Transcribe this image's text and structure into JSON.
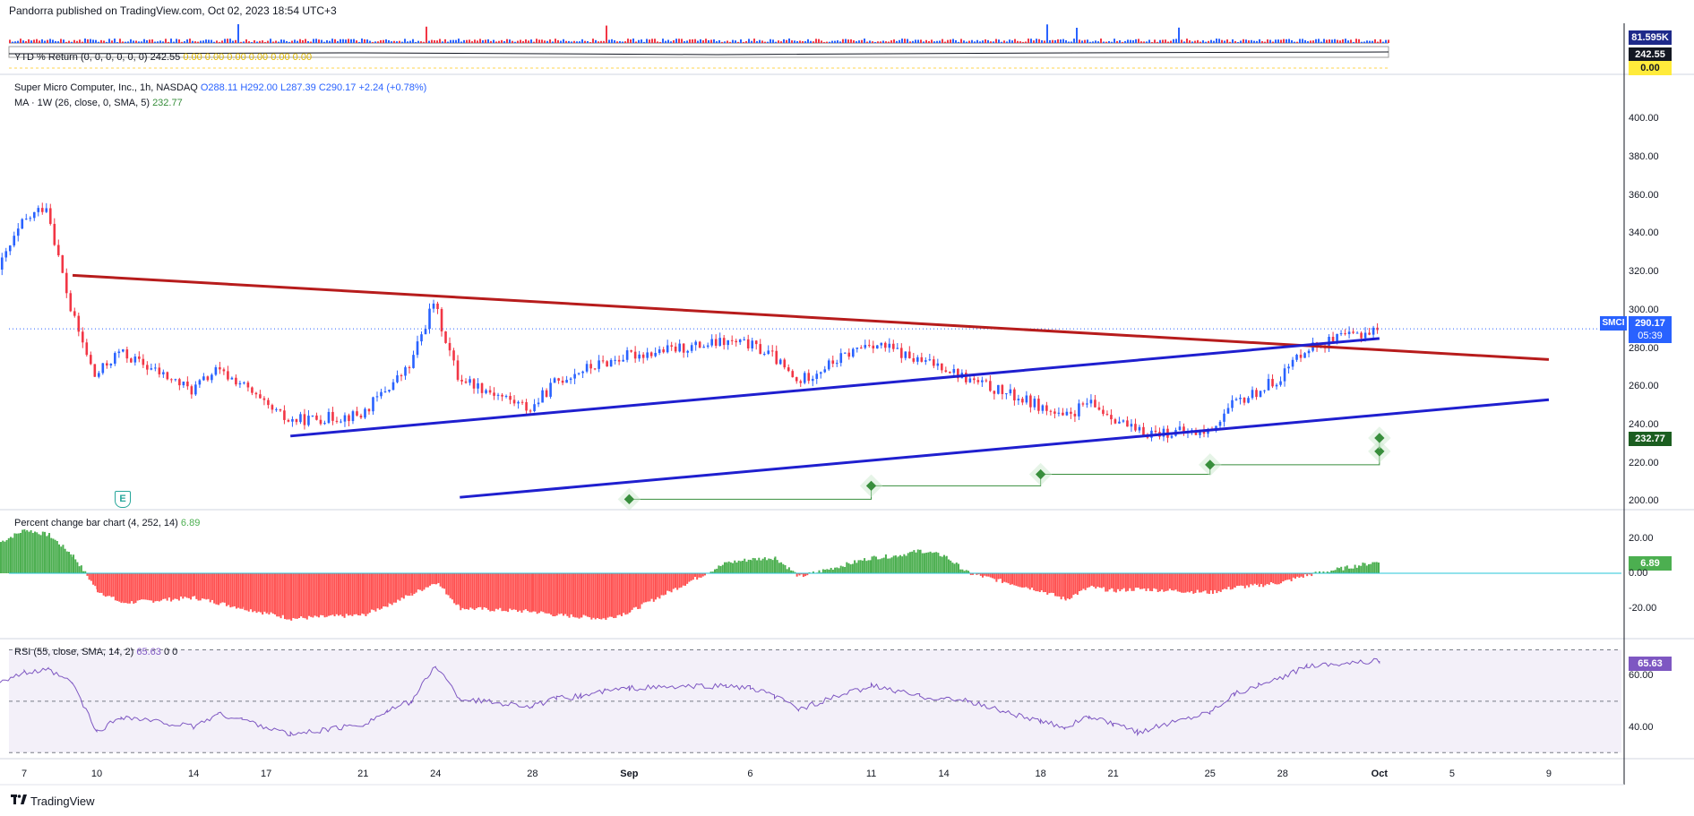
{
  "header": {
    "text": "Pandorra published on TradingView.com, Oct 02, 2023 18:54 UTC+3"
  },
  "footer": {
    "brand": "TradingView"
  },
  "top_panel": {
    "volume_badge": "81.595K",
    "ytd_label": "YTD % Return (0, 0, 0, 0, 0, 0)",
    "ytd_value": "242.55",
    "ytd_zeros": "0.00  0.00  0.00  0.00  0.00  0.00",
    "ytd_badge": "242.55",
    "zero_badge": "0.00"
  },
  "main": {
    "title": "Super Micro Computer, Inc., 1h, NASDAQ",
    "o": "O288.11",
    "h": "H292.00",
    "l": "L287.39",
    "c": "C290.17",
    "chg": "+2.24 (+0.78%)",
    "ma_label": "MA · 1W (26, close, 0, SMA, 5)",
    "ma_value": "232.77",
    "price_badge": "290.17",
    "time_badge": "05:39",
    "symbol_badge": "SMCI",
    "ma_badge": "232.77",
    "earnings_marker": "E"
  },
  "pct": {
    "label": "Percent change bar chart (4, 252, 14)",
    "value": "6.89",
    "badge": "6.89"
  },
  "rsi": {
    "label": "RSI (55, close, SMA, 14, 2)",
    "value": "65.63",
    "extra": "0  0",
    "badge": "65.63"
  },
  "colors": {
    "up": "#2962ff",
    "down": "#f23645",
    "res": "#b71c1c",
    "sup": "#1f1fcf",
    "pct_up": "#4caf50",
    "pct_down": "#ff5252",
    "rsi": "#7e57c2",
    "ma": "#388e3c"
  },
  "chart_data": [
    {
      "type": "line",
      "title": "Super Micro Computer, Inc., 1h, NASDAQ",
      "y_ticks": [
        200,
        220,
        240,
        260,
        280,
        300,
        320,
        340,
        360,
        380,
        400
      ],
      "ylim": [
        196,
        416
      ],
      "x_ticks": [
        "7",
        "10",
        "14",
        "17",
        "21",
        "24",
        "28",
        "Sep",
        "6",
        "11",
        "14",
        "18",
        "21",
        "25",
        "28",
        "Oct",
        "5",
        "9"
      ],
      "series": [
        {
          "x": [
            "Aug 6",
            "Aug 7",
            "Aug 8",
            "Aug 9",
            "Aug 10",
            "Aug 11",
            "Aug 14",
            "Aug 15",
            "Aug 16",
            "Aug 17",
            "Aug 18",
            "Aug 21",
            "Aug 22",
            "Aug 23",
            "Aug 24",
            "Aug 25",
            "Aug 28",
            "Aug 29",
            "Aug 30",
            "Aug 31",
            "Sep 1",
            "Sep 5",
            "Sep 6",
            "Sep 7",
            "Sep 8",
            "Sep 11",
            "Sep 12",
            "Sep 13",
            "Sep 14",
            "Sep 15",
            "Sep 18",
            "Sep 19",
            "Sep 20",
            "Sep 21",
            "Sep 22",
            "Sep 25",
            "Sep 26",
            "Sep 27",
            "Sep 28",
            "Sep 29",
            "Oct 2"
          ],
          "values": [
            321,
            345,
            355,
            300,
            265,
            278,
            258,
            268,
            262,
            250,
            242,
            245,
            258,
            270,
            304,
            265,
            248,
            262,
            268,
            272,
            276,
            283,
            282,
            276,
            262,
            283,
            279,
            273,
            271,
            264,
            250,
            243,
            251,
            245,
            236,
            236,
            250,
            257,
            265,
            280,
            290
          ]
        }
      ],
      "resistance_line": {
        "from": [
          "Aug 9",
          318
        ],
        "to": [
          "Oct 9",
          274
        ]
      },
      "upper_support_line": {
        "from": [
          "Aug 18",
          234
        ],
        "to": [
          "Oct 2",
          285
        ]
      },
      "lower_support_line": {
        "from": [
          "Aug 25",
          202
        ],
        "to": [
          "Oct 9",
          253
        ]
      },
      "ma_steps": [
        [
          "Sep 1",
          201
        ],
        [
          "Sep 11",
          208
        ],
        [
          "Sep 18",
          214
        ],
        [
          "Sep 25",
          219
        ],
        [
          "Oct 2",
          226
        ],
        [
          "Oct 2",
          233
        ]
      ]
    },
    {
      "type": "bar",
      "title": "Percent change bar chart (4, 252, 14)",
      "y_ticks": [
        -20,
        0,
        20
      ],
      "ylim": [
        -37,
        36
      ],
      "x": [
        "Aug 6",
        "Aug 7",
        "Aug 8",
        "Aug 9",
        "Aug 10",
        "Aug 11",
        "Aug 14",
        "Aug 15",
        "Aug 16",
        "Aug 17",
        "Aug 18",
        "Aug 21",
        "Aug 22",
        "Aug 23",
        "Aug 24",
        "Aug 25",
        "Aug 28",
        "Aug 29",
        "Aug 30",
        "Aug 31",
        "Sep 1",
        "Sep 5",
        "Sep 6",
        "Sep 7",
        "Sep 8",
        "Sep 11",
        "Sep 12",
        "Sep 13",
        "Sep 14",
        "Sep 15",
        "Sep 18",
        "Sep 19",
        "Sep 20",
        "Sep 21",
        "Sep 22",
        "Sep 25",
        "Sep 26",
        "Sep 27",
        "Sep 28",
        "Sep 29",
        "Oct 2"
      ],
      "values": [
        18,
        25,
        22,
        10,
        -10,
        -17,
        -14,
        -17,
        -20,
        -23,
        -26,
        -24,
        -18,
        -12,
        -5,
        -20,
        -22,
        -24,
        -25,
        -26,
        -22,
        6,
        8,
        9,
        -2,
        9,
        10,
        13,
        10,
        0,
        -10,
        -15,
        -8,
        -10,
        -9,
        -11,
        -8,
        -7,
        -5,
        -1,
        6.89
      ]
    },
    {
      "type": "line",
      "title": "RSI (55, close, SMA, 14, 2)",
      "y_ticks": [
        40,
        60
      ],
      "ylim": [
        28,
        74
      ],
      "bands": [
        30,
        50,
        70
      ],
      "x": [
        "Aug 6",
        "Aug 7",
        "Aug 8",
        "Aug 9",
        "Aug 10",
        "Aug 11",
        "Aug 14",
        "Aug 15",
        "Aug 16",
        "Aug 17",
        "Aug 18",
        "Aug 21",
        "Aug 22",
        "Aug 23",
        "Aug 24",
        "Aug 25",
        "Aug 28",
        "Aug 29",
        "Aug 30",
        "Aug 31",
        "Sep 1",
        "Sep 5",
        "Sep 6",
        "Sep 7",
        "Sep 8",
        "Sep 11",
        "Sep 12",
        "Sep 13",
        "Sep 14",
        "Sep 15",
        "Sep 18",
        "Sep 19",
        "Sep 20",
        "Sep 21",
        "Sep 22",
        "Sep 25",
        "Sep 26",
        "Sep 27",
        "Sep 28",
        "Sep 29",
        "Oct 2"
      ],
      "values": [
        58,
        61,
        62,
        57,
        38,
        44,
        40,
        45,
        43,
        40,
        37,
        41,
        46,
        50,
        64,
        51,
        48,
        51,
        52,
        54,
        55,
        56,
        55,
        52,
        47,
        56,
        54,
        52,
        51,
        50,
        42,
        40,
        44,
        41,
        38,
        46,
        53,
        56,
        59,
        64,
        65.63
      ]
    }
  ]
}
